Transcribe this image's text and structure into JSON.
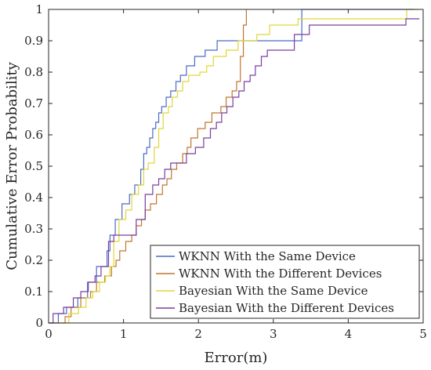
{
  "chart_data": {
    "type": "line",
    "step": true,
    "xlabel": "Error(m)",
    "ylabel": "Cumulative Error Probability",
    "xlim": [
      0,
      5
    ],
    "ylim": [
      0,
      1
    ],
    "xticks": [
      0,
      1,
      2,
      3,
      4,
      5
    ],
    "yticks": [
      0,
      0.1,
      0.2,
      0.3,
      0.4,
      0.5,
      0.6,
      0.7,
      0.8,
      0.9,
      1
    ],
    "grid": false,
    "legend_position": "bottom-right",
    "series": [
      {
        "name": "WKNN With the Same Device",
        "color": "#4C6BC5",
        "x": [
          0.13,
          0.24,
          0.39,
          0.52,
          0.64,
          0.78,
          0.82,
          0.89,
          0.98,
          1.08,
          1.15,
          1.23,
          1.27,
          1.31,
          1.35,
          1.39,
          1.43,
          1.47,
          1.51,
          1.57,
          1.63,
          1.7,
          1.76,
          1.84,
          1.95,
          2.09,
          2.25,
          3.38,
          4.88
        ],
        "y": [
          0.03,
          0.05,
          0.08,
          0.13,
          0.18,
          0.23,
          0.28,
          0.33,
          0.38,
          0.41,
          0.44,
          0.49,
          0.54,
          0.56,
          0.59,
          0.62,
          0.64,
          0.67,
          0.69,
          0.72,
          0.74,
          0.77,
          0.79,
          0.82,
          0.85,
          0.87,
          0.9,
          1.0,
          1.0
        ]
      },
      {
        "name": "WKNN With the Different Devices",
        "color": "#C0762F",
        "x": [
          0.22,
          0.3,
          0.43,
          0.56,
          0.64,
          0.75,
          0.84,
          0.9,
          0.95,
          1.03,
          1.11,
          1.17,
          1.24,
          1.29,
          1.36,
          1.44,
          1.52,
          1.58,
          1.64,
          1.71,
          1.79,
          1.85,
          1.9,
          1.99,
          2.09,
          2.18,
          2.3,
          2.37,
          2.45,
          2.51,
          2.56,
          2.6,
          2.64
        ],
        "y": [
          0.02,
          0.05,
          0.08,
          0.1,
          0.13,
          0.15,
          0.18,
          0.2,
          0.23,
          0.26,
          0.28,
          0.31,
          0.33,
          0.36,
          0.38,
          0.41,
          0.44,
          0.46,
          0.49,
          0.51,
          0.54,
          0.56,
          0.59,
          0.62,
          0.64,
          0.67,
          0.69,
          0.72,
          0.74,
          0.77,
          0.85,
          0.95,
          1.0
        ]
      },
      {
        "name": "Bayesian With the Same Device",
        "color": "#E0D637",
        "x": [
          0.27,
          0.4,
          0.5,
          0.59,
          0.68,
          0.76,
          0.82,
          0.87,
          0.94,
          1.03,
          1.11,
          1.2,
          1.27,
          1.33,
          1.41,
          1.47,
          1.53,
          1.6,
          1.65,
          1.72,
          1.79,
          1.87,
          1.95,
          2.02,
          2.11,
          2.2,
          2.37,
          2.53,
          2.66,
          2.78,
          2.95,
          3.33,
          3.66,
          4.78,
          4.95
        ],
        "y": [
          0.03,
          0.05,
          0.08,
          0.1,
          0.13,
          0.15,
          0.18,
          0.26,
          0.33,
          0.36,
          0.41,
          0.44,
          0.49,
          0.51,
          0.56,
          0.62,
          0.67,
          0.69,
          0.72,
          0.74,
          0.77,
          0.79,
          0.79,
          0.8,
          0.82,
          0.85,
          0.87,
          0.9,
          0.9,
          0.92,
          0.95,
          0.97,
          0.97,
          1.0,
          1.0
        ]
      },
      {
        "name": "Bayesian With the Different Devices",
        "color": "#7A3E9D",
        "x": [
          0.06,
          0.2,
          0.33,
          0.43,
          0.53,
          0.62,
          0.7,
          0.8,
          0.87,
          1.02,
          1.17,
          1.29,
          1.39,
          1.47,
          1.55,
          1.63,
          1.72,
          1.84,
          1.96,
          2.07,
          2.16,
          2.24,
          2.31,
          2.38,
          2.46,
          2.54,
          2.61,
          2.69,
          2.76,
          2.84,
          2.92,
          3.0,
          3.09,
          3.28,
          3.48,
          4.77,
          4.95
        ],
        "y": [
          0.03,
          0.05,
          0.08,
          0.1,
          0.13,
          0.15,
          0.18,
          0.26,
          0.28,
          0.28,
          0.33,
          0.41,
          0.44,
          0.46,
          0.49,
          0.51,
          0.51,
          0.54,
          0.56,
          0.59,
          0.62,
          0.64,
          0.67,
          0.69,
          0.72,
          0.74,
          0.77,
          0.79,
          0.82,
          0.85,
          0.87,
          0.87,
          0.87,
          0.92,
          0.95,
          0.97,
          0.97
        ]
      }
    ]
  }
}
